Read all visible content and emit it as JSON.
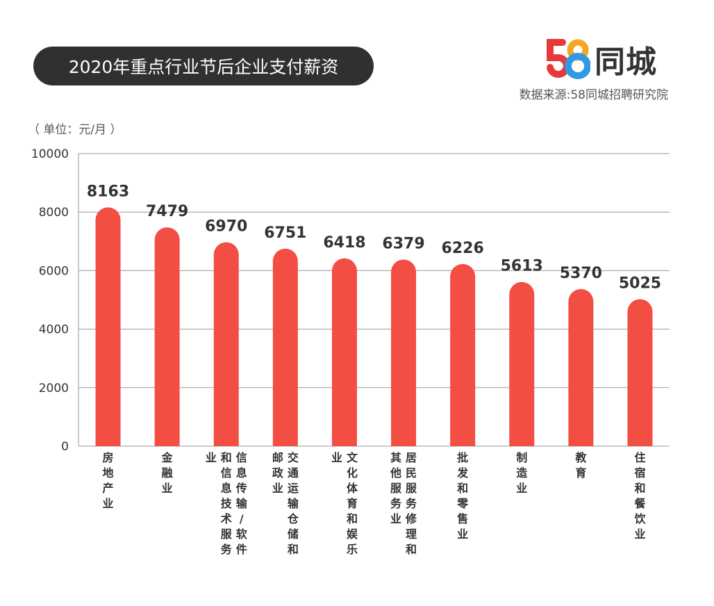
{
  "header": {
    "title": "2020年重点行业节后企业支付薪资",
    "unit": "（ 单位：元/月 ）",
    "source": "数据来源:58同城招聘研究院"
  },
  "logo": {
    "digits": "58",
    "word": "同城",
    "colors": [
      "#E63A3A",
      "#F5A623",
      "#2F9BE5",
      "#3CB371"
    ]
  },
  "colors": {
    "bar": "#F24E44",
    "title_bg": "#303030",
    "grid": "#9A9A9A"
  },
  "chart_data": {
    "type": "bar",
    "title": "2020年重点行业节后企业支付薪资",
    "ylabel": "（ 单位：元/月 ）",
    "ylim": [
      0,
      10000
    ],
    "yticks": [
      0,
      2000,
      4000,
      6000,
      8000,
      10000
    ],
    "grid": true,
    "categories": [
      "房地产业",
      "金融业",
      "信息传输/软件和信息技术服务业",
      "交通运输仓储和邮政业",
      "文化体育和娱乐业",
      "居民服务修理和其他服务业",
      "批发和零售业",
      "制造业",
      "教育",
      "住宿和餐饮业"
    ],
    "values": [
      8163,
      7479,
      6970,
      6751,
      6418,
      6379,
      6226,
      5613,
      5370,
      5025
    ]
  }
}
